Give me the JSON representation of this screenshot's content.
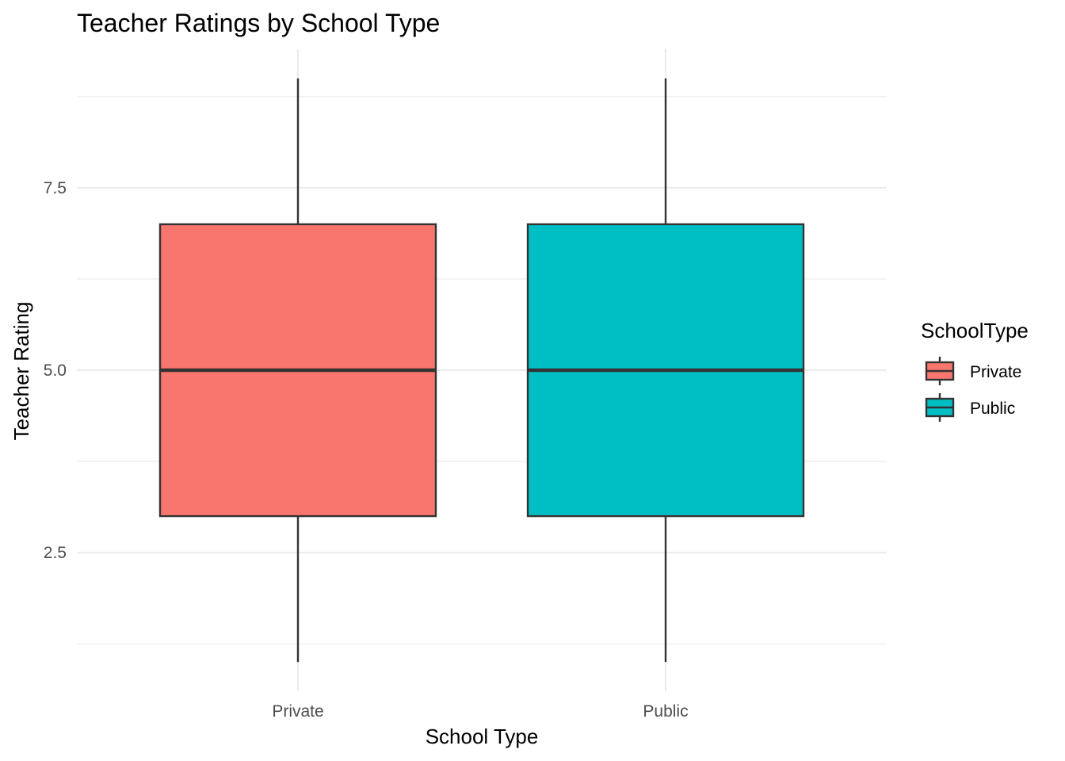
{
  "chart_data": {
    "type": "box",
    "title": "Teacher Ratings by School Type",
    "xlabel": "School Type",
    "ylabel": "Teacher Rating",
    "categories": [
      "Private",
      "Public"
    ],
    "y_ticks": [
      2.5,
      5.0,
      7.5
    ],
    "y_tick_labels": [
      "2.5",
      "5.0",
      "7.5"
    ],
    "ylim": [
      0.6,
      9.4
    ],
    "grid": true,
    "legend": {
      "title": "SchoolType",
      "position": "right",
      "entries": [
        {
          "label": "Private",
          "color": "#F8766D"
        },
        {
          "label": "Public",
          "color": "#00BFC4"
        }
      ]
    },
    "series": [
      {
        "category": "Private",
        "min": 1,
        "q1": 3,
        "median": 5,
        "q3": 7,
        "max": 9,
        "color": "#F8766D"
      },
      {
        "category": "Public",
        "min": 1,
        "q1": 3,
        "median": 5,
        "q3": 7,
        "max": 9,
        "color": "#00BFC4"
      }
    ]
  }
}
